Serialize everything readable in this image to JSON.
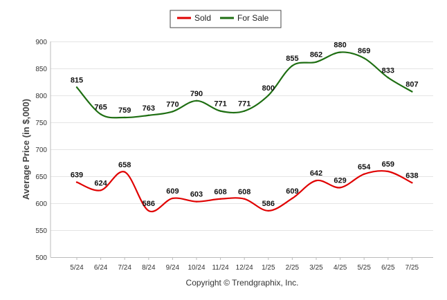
{
  "chart_data": {
    "type": "line",
    "ylabel": "Average Price (in $,000)",
    "ylim": [
      500,
      900
    ],
    "yticks": [
      500,
      550,
      600,
      650,
      700,
      750,
      800,
      850,
      900
    ],
    "categories": [
      "5/24",
      "6/24",
      "7/24",
      "8/24",
      "9/24",
      "10/24",
      "11/24",
      "12/24",
      "1/25",
      "2/25",
      "3/25",
      "4/25",
      "5/25",
      "6/25",
      "7/25"
    ],
    "series": [
      {
        "name": "Sold",
        "color": "#e00000",
        "values": [
          639,
          624,
          658,
          586,
          609,
          603,
          608,
          608,
          586,
          609,
          642,
          629,
          654,
          659,
          638
        ]
      },
      {
        "name": "For Sale",
        "color": "#1e6e12",
        "values": [
          815,
          765,
          759,
          763,
          770,
          790,
          771,
          771,
          800,
          855,
          862,
          880,
          869,
          833,
          807
        ]
      }
    ],
    "legend_position": "top-center",
    "grid": "horizontal"
  },
  "footer": {
    "copyright": "Copyright © Trendgraphix, Inc."
  }
}
